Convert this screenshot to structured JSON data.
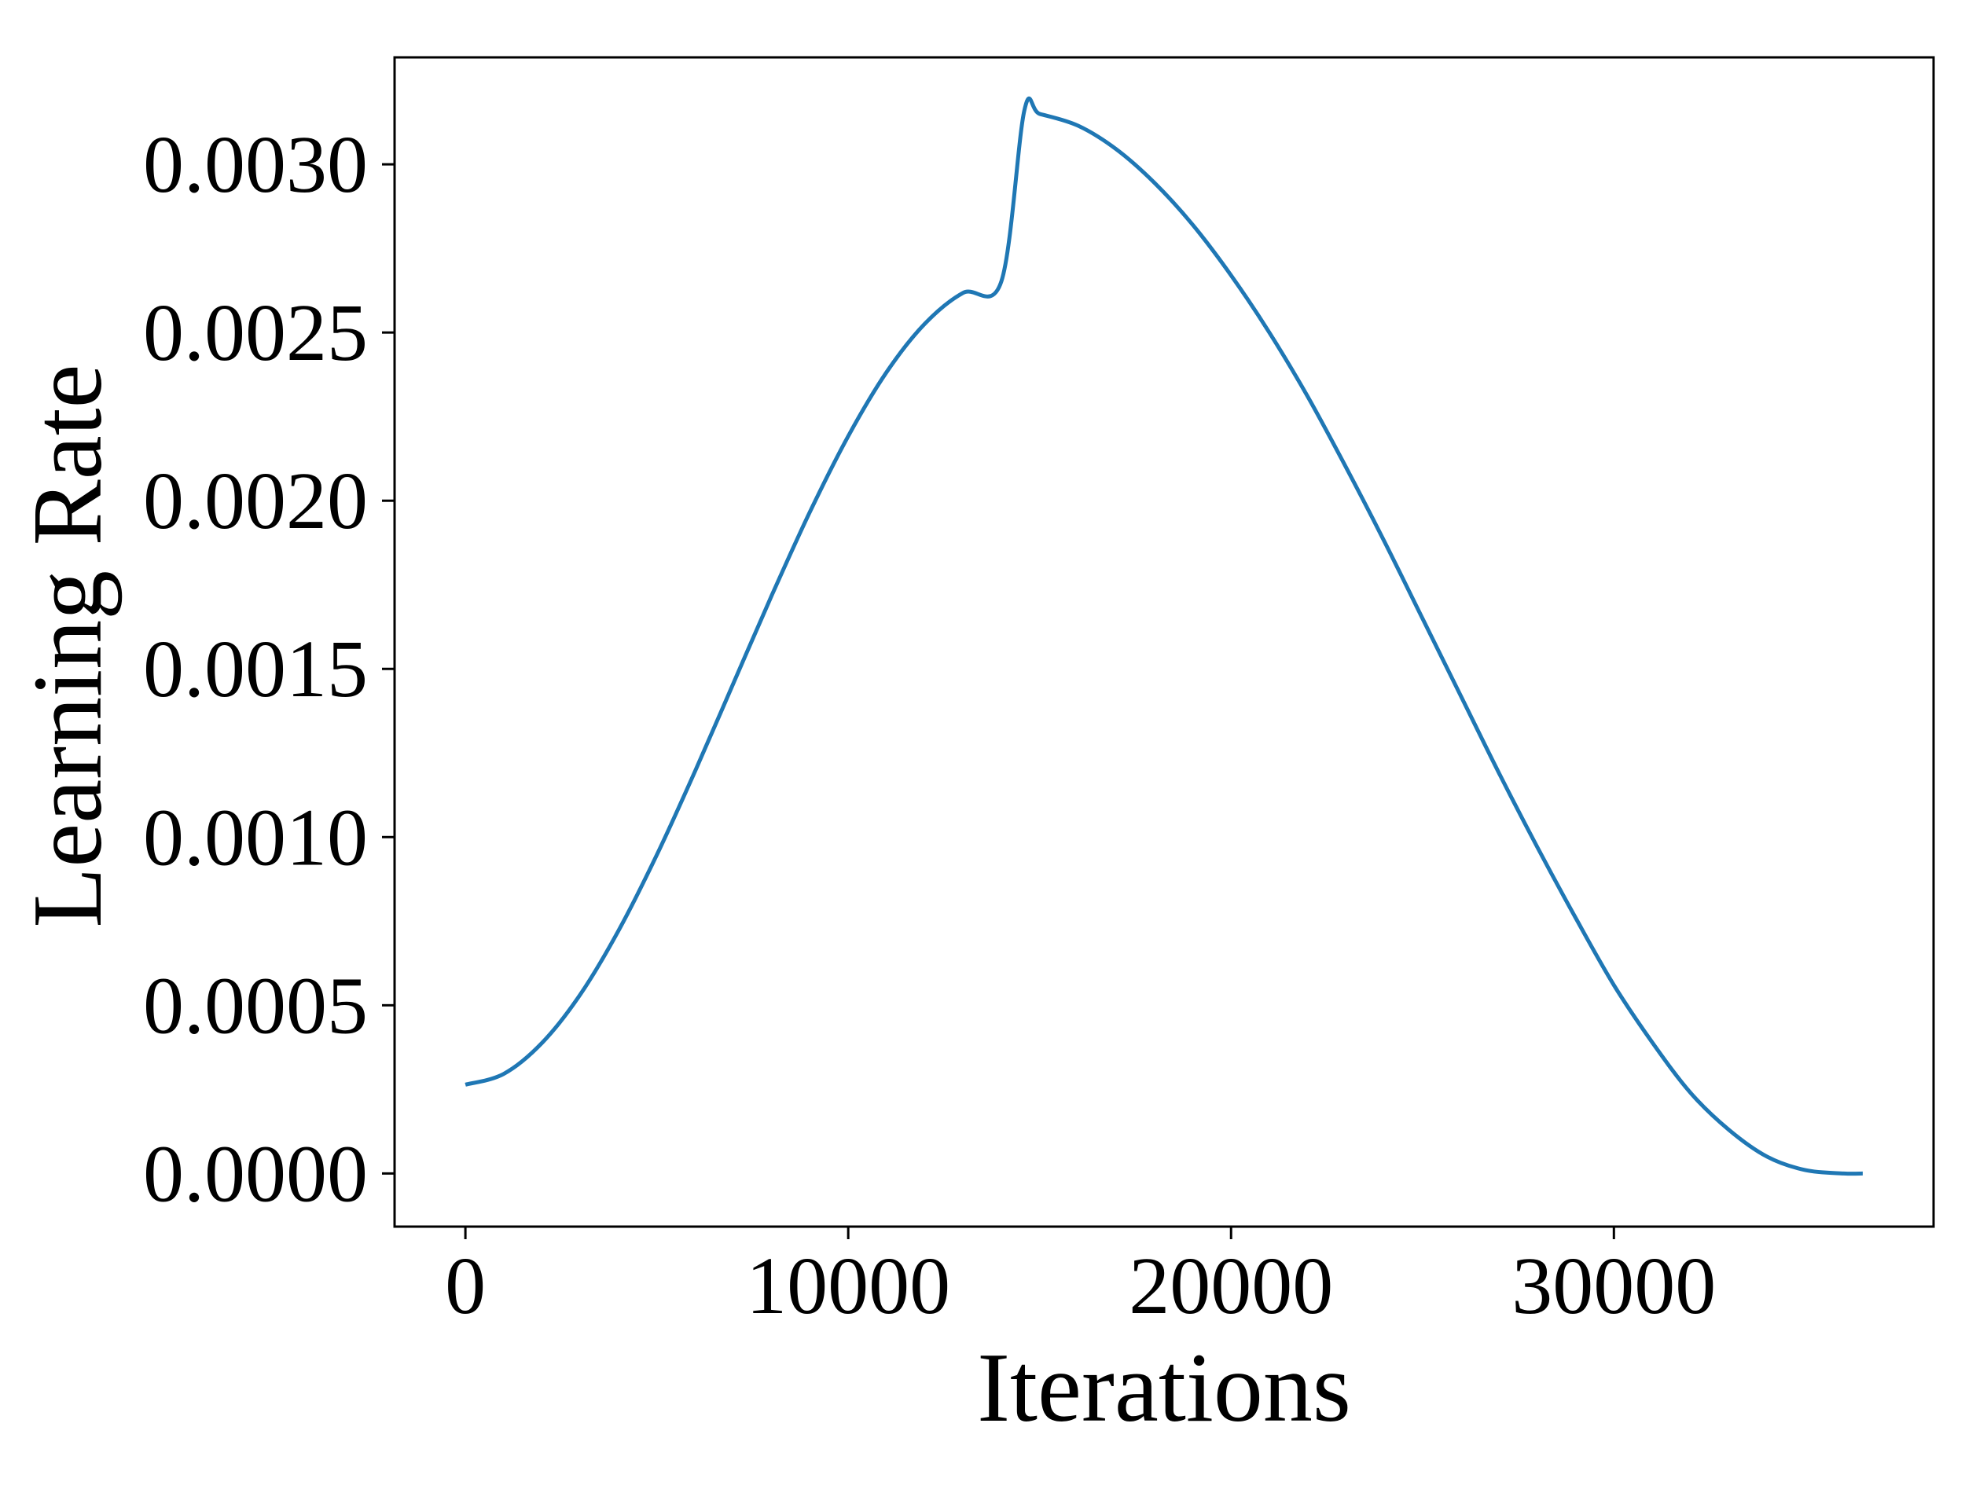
{
  "chart_data": {
    "type": "line",
    "title": "",
    "xlabel": "Iterations",
    "ylabel": "Learning Rate",
    "xlim": [
      -1850,
      38350
    ],
    "ylim": [
      -0.000158,
      0.003318
    ],
    "xticks": [
      0,
      10000,
      20000,
      30000
    ],
    "xtick_labels": [
      "0",
      "10000",
      "20000",
      "30000"
    ],
    "yticks": [
      0.0,
      0.0005,
      0.001,
      0.0015,
      0.002,
      0.0025,
      0.003
    ],
    "ytick_labels": [
      "0.0000",
      "0.0005",
      "0.0010",
      "0.0015",
      "0.0020",
      "0.0025",
      "0.0030"
    ],
    "grid": false,
    "series": [
      {
        "color": "#1f77b4",
        "x": [
          0,
          1000,
          2000,
          3000,
          4000,
          5000,
          6000,
          7000,
          8000,
          9000,
          10000,
          11000,
          12000,
          13000,
          14000,
          14600,
          15000,
          16000,
          17000,
          18000,
          19000,
          20000,
          21000,
          22000,
          23000,
          24000,
          25000,
          26000,
          27000,
          28000,
          29000,
          30000,
          31000,
          32000,
          33000,
          34000,
          35000,
          36000,
          36500
        ],
        "y": [
          0.000264,
          0.000296,
          0.000388,
          0.000532,
          0.000722,
          0.000947,
          0.001196,
          0.001457,
          0.001718,
          0.001967,
          0.002192,
          0.002382,
          0.002526,
          0.002618,
          0.002652,
          0.00316,
          0.00315,
          0.003115,
          0.003045,
          0.002945,
          0.00282,
          0.00267,
          0.0025,
          0.00231,
          0.0021,
          0.00188,
          0.00165,
          0.00142,
          0.00119,
          0.00097,
          0.00076,
          0.00056,
          0.00039,
          0.00024,
          0.00013,
          5e-05,
          1e-05,
          0.0,
          0.0
        ]
      }
    ]
  }
}
